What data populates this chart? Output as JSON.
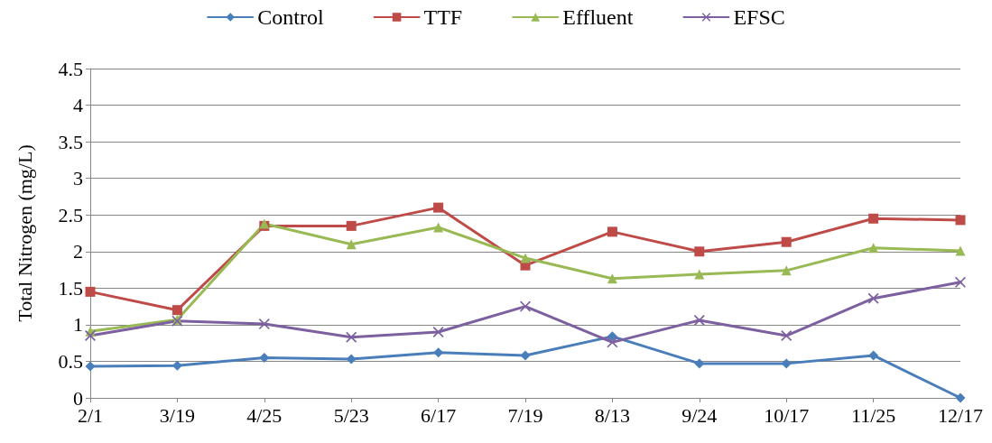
{
  "chart_data": {
    "type": "line",
    "ylabel": "Total Nitrogen (mg/L)",
    "categories": [
      "2/1",
      "3/19",
      "4/25",
      "5/23",
      "6/17",
      "7/19",
      "8/13",
      "9/24",
      "10/17",
      "11/25",
      "12/17"
    ],
    "series": [
      {
        "name": "Control",
        "color": "#4a7ebb",
        "marker": "diamond",
        "values": [
          0.43,
          0.44,
          0.55,
          0.53,
          0.62,
          0.58,
          0.84,
          0.47,
          0.47,
          0.58,
          0
        ]
      },
      {
        "name": "TTF",
        "color": "#be4b48",
        "marker": "square",
        "values": [
          1.45,
          1.2,
          2.35,
          2.35,
          2.6,
          1.81,
          2.27,
          2.0,
          2.13,
          2.45,
          2.43
        ]
      },
      {
        "name": "Effluent",
        "color": "#98b954",
        "marker": "triangle",
        "values": [
          0.91,
          1.07,
          2.38,
          2.1,
          2.33,
          1.91,
          1.63,
          1.69,
          1.74,
          2.05,
          2.01
        ]
      },
      {
        "name": "EFSC",
        "color": "#7d60a0",
        "marker": "cross",
        "values": [
          0.85,
          1.05,
          1.01,
          0.83,
          0.9,
          1.25,
          0.76,
          1.06,
          0.85,
          1.36,
          1.58
        ]
      }
    ],
    "ylim": [
      0,
      4.5
    ],
    "yticks": [
      0,
      0.5,
      1,
      1.5,
      2,
      2.5,
      3,
      3.5,
      4,
      4.5
    ],
    "grid": "y",
    "legend": "top",
    "line_style": "solid"
  }
}
